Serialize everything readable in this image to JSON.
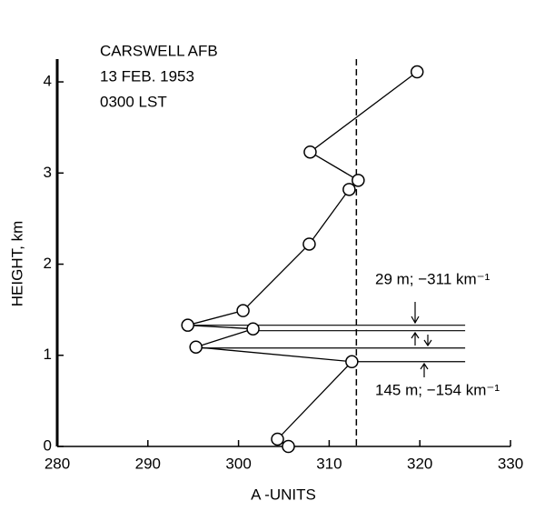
{
  "chart_data": {
    "type": "line",
    "annotations": [
      "CARSWELL AFB",
      "13 FEB. 1953",
      "0300 LST",
      "29 m; −311 km⁻¹",
      "145 m; −154 km⁻¹"
    ],
    "x_label": "A -UNITS",
    "y_label": "HEIGHT, km",
    "x": [
      305.5,
      304.3,
      312.5,
      295.3,
      301.6,
      294.4,
      300.5,
      307.8,
      312.2,
      313.2,
      307.9,
      319.7
    ],
    "series": [
      {
        "color": "#000000",
        "values": [
          0,
          0.08,
          0.93,
          1.09,
          1.29,
          1.33,
          1.49,
          2.22,
          2.82,
          2.92,
          3.23,
          4.11
        ]
      }
    ],
    "vline": 313,
    "layer_lines": [
      {
        "y": 1.33,
        "x": [
          294.4,
          325
        ]
      },
      {
        "y": 1.27,
        "x": [
          301.6,
          325
        ]
      },
      {
        "y": 1.08,
        "x": [
          295.3,
          325
        ]
      },
      {
        "y": 0.93,
        "x": [
          312.5,
          325
        ]
      }
    ],
    "xlim": [
      280,
      330
    ],
    "xticks": [
      280,
      290,
      300,
      310,
      320,
      330
    ],
    "ylim": [
      0,
      4.25
    ],
    "yticks": [
      0,
      1,
      2,
      3,
      4
    ]
  }
}
